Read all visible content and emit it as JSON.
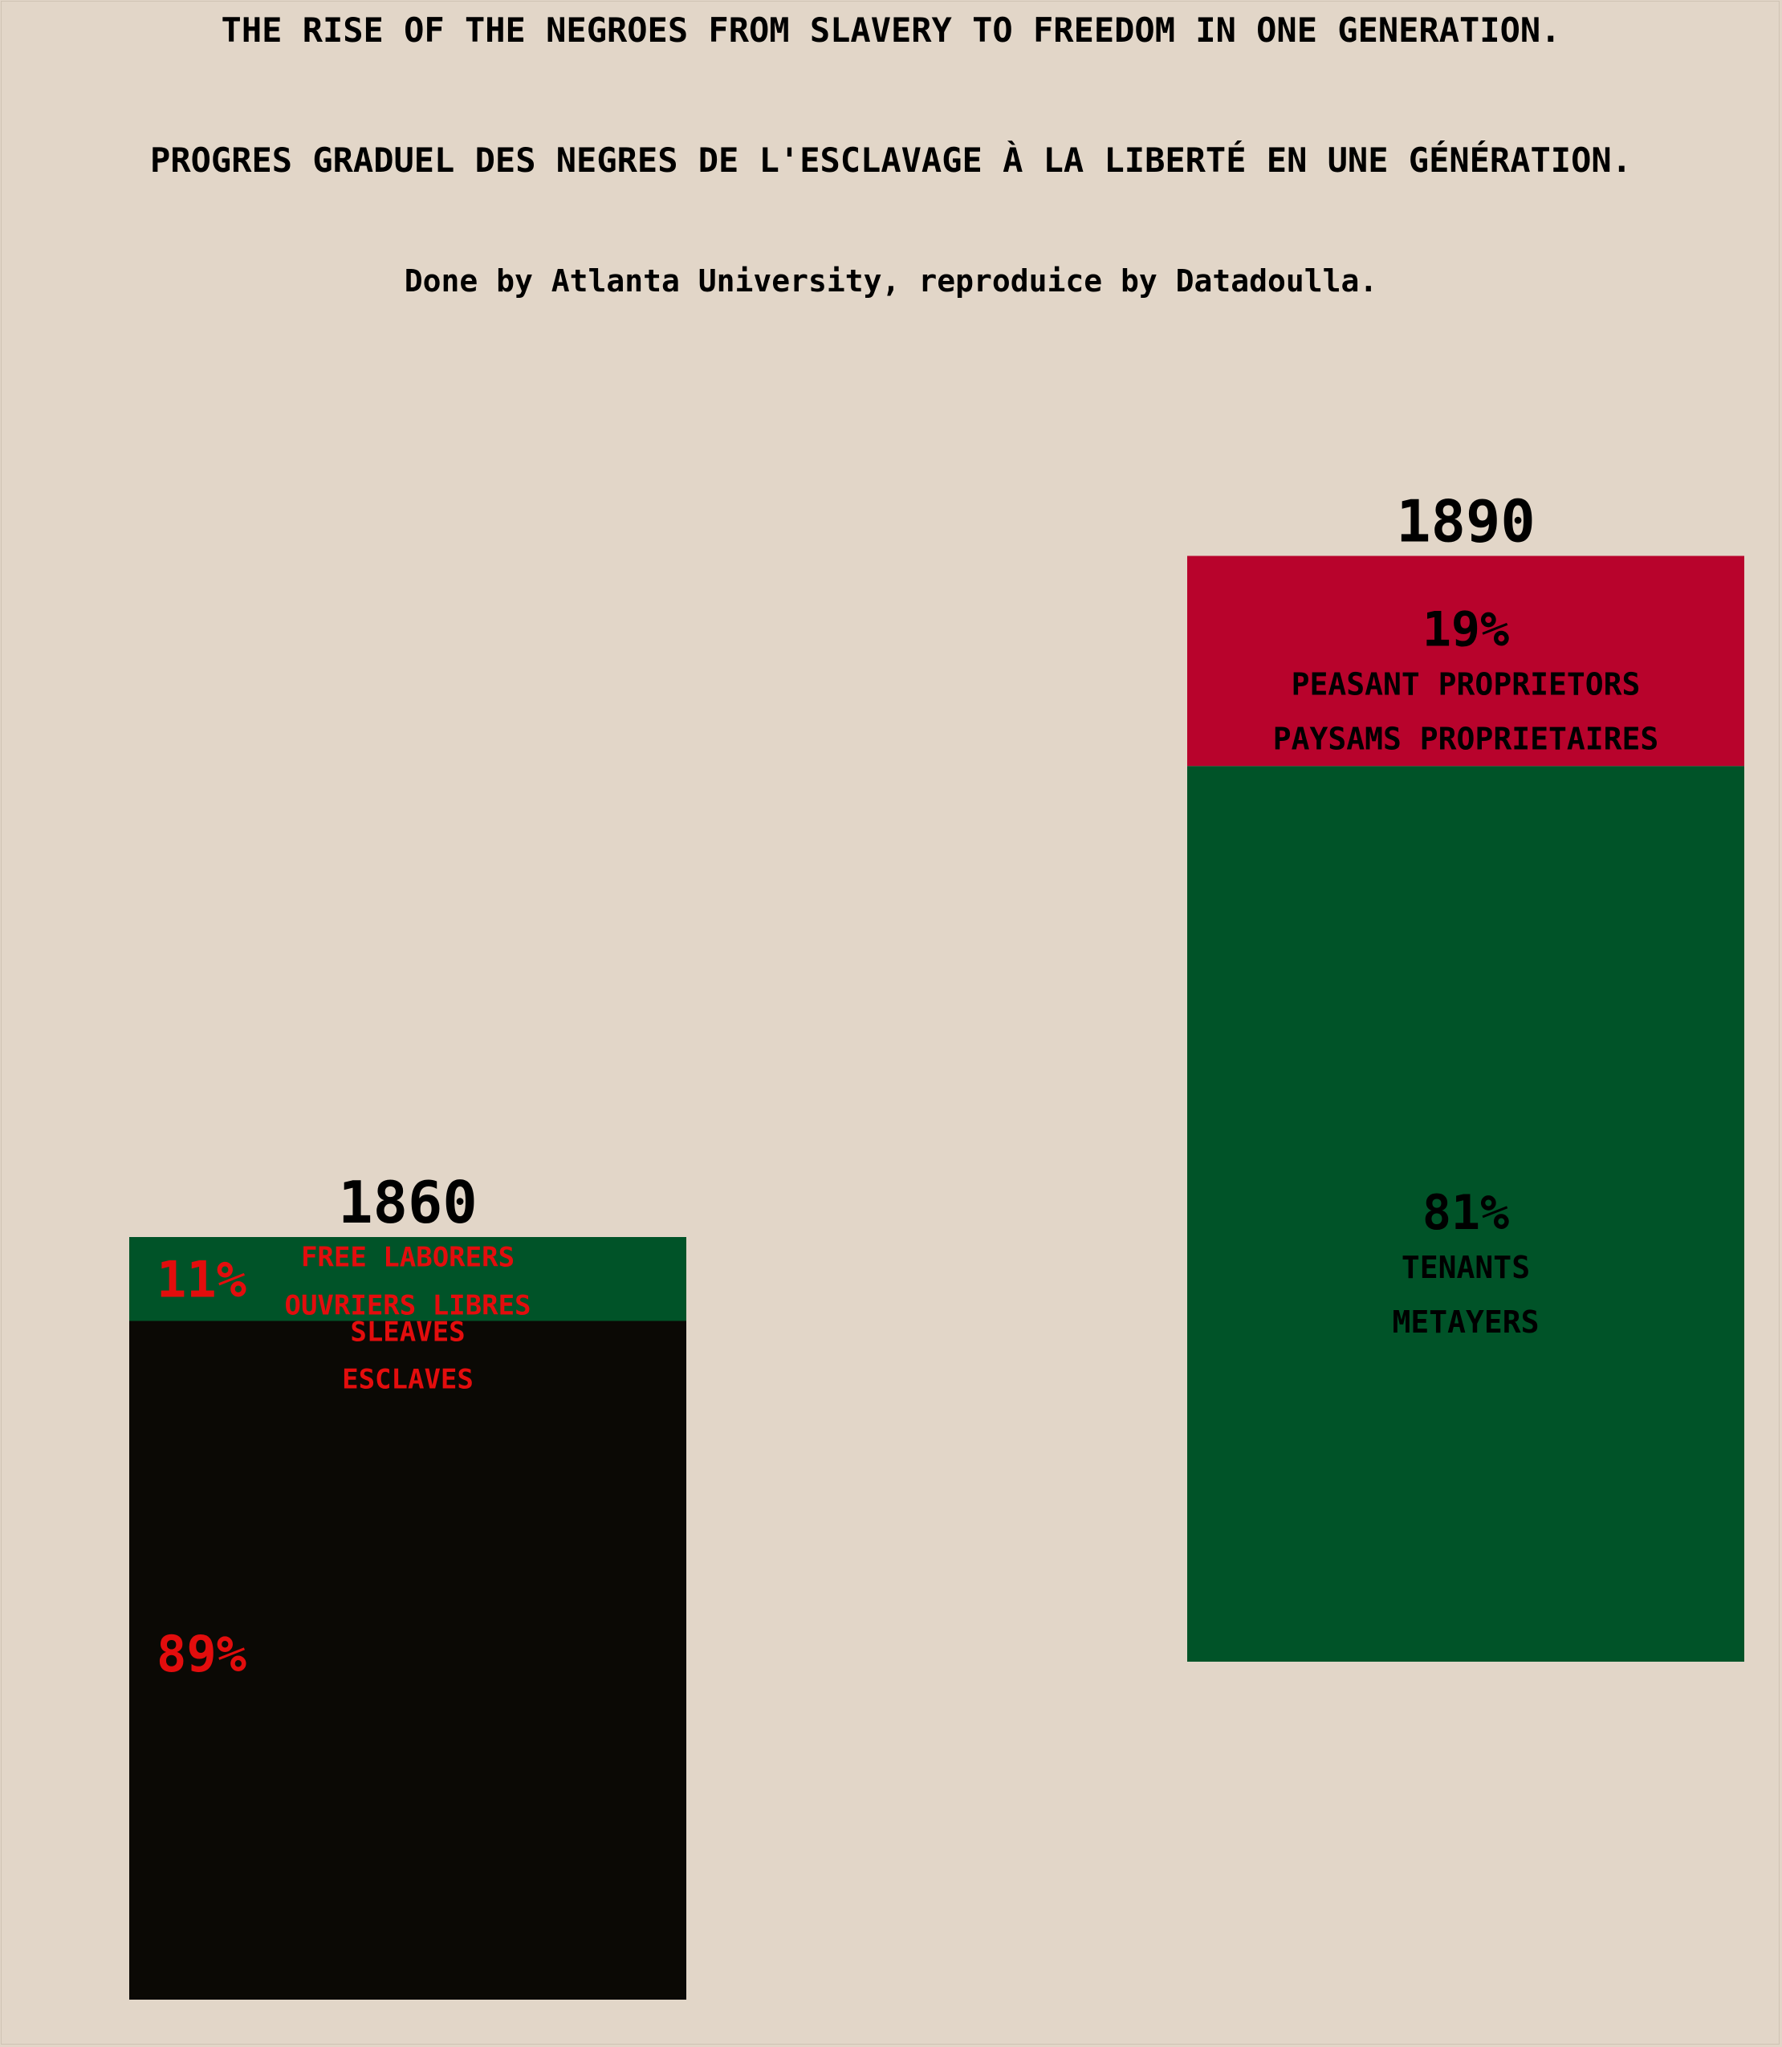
{
  "header": {
    "title_en": "THE RISE OF THE NEGROES FROM SLAVERY TO FREEDOM IN ONE GENERATION.",
    "title_fr": "PROGRES GRADUEL DES NEGRES DE L'ESCLAVAGE À LA LIBERTÉ EN UNE GÉNÉRATION.",
    "subtitle": "Done by Atlanta University, reproduice by Datadoulla."
  },
  "colors": {
    "background": "#e2d6c8",
    "slaves": "#0b0905",
    "free_laborers": "#005328",
    "tenants": "#005328",
    "peasant_proprietors": "#b8032c",
    "label_red": "#e30d0d",
    "label_black": "#000000"
  },
  "chart_data": {
    "type": "bar",
    "stacked": true,
    "ylim": [
      0,
      100
    ],
    "bar_scale_relative": [
      1,
      1.45
    ],
    "bars": [
      {
        "year": "1860",
        "segments": [
          {
            "value": 89,
            "pct_label": "89%",
            "label_en": "SLEAVES",
            "label_fr": "ESCLAVES",
            "color": "#0b0905",
            "text_color": "#e30d0d"
          },
          {
            "value": 11,
            "pct_label": "11%",
            "label_en": "FREE LABORERS",
            "label_fr": "OUVRIERS LIBRES",
            "color": "#005328",
            "text_color": "#e30d0d"
          }
        ]
      },
      {
        "year": "1890",
        "segments": [
          {
            "value": 81,
            "pct_label": "81%",
            "label_en": "TENANTS",
            "label_fr": "METAYERS",
            "color": "#005328",
            "text_color": "#000000"
          },
          {
            "value": 19,
            "pct_label": "19%",
            "label_en": "PEASANT PROPRIETORS",
            "label_fr": "PAYSAMS PROPRIETAIRES",
            "color": "#b8032c",
            "text_color": "#000000"
          }
        ]
      }
    ]
  }
}
